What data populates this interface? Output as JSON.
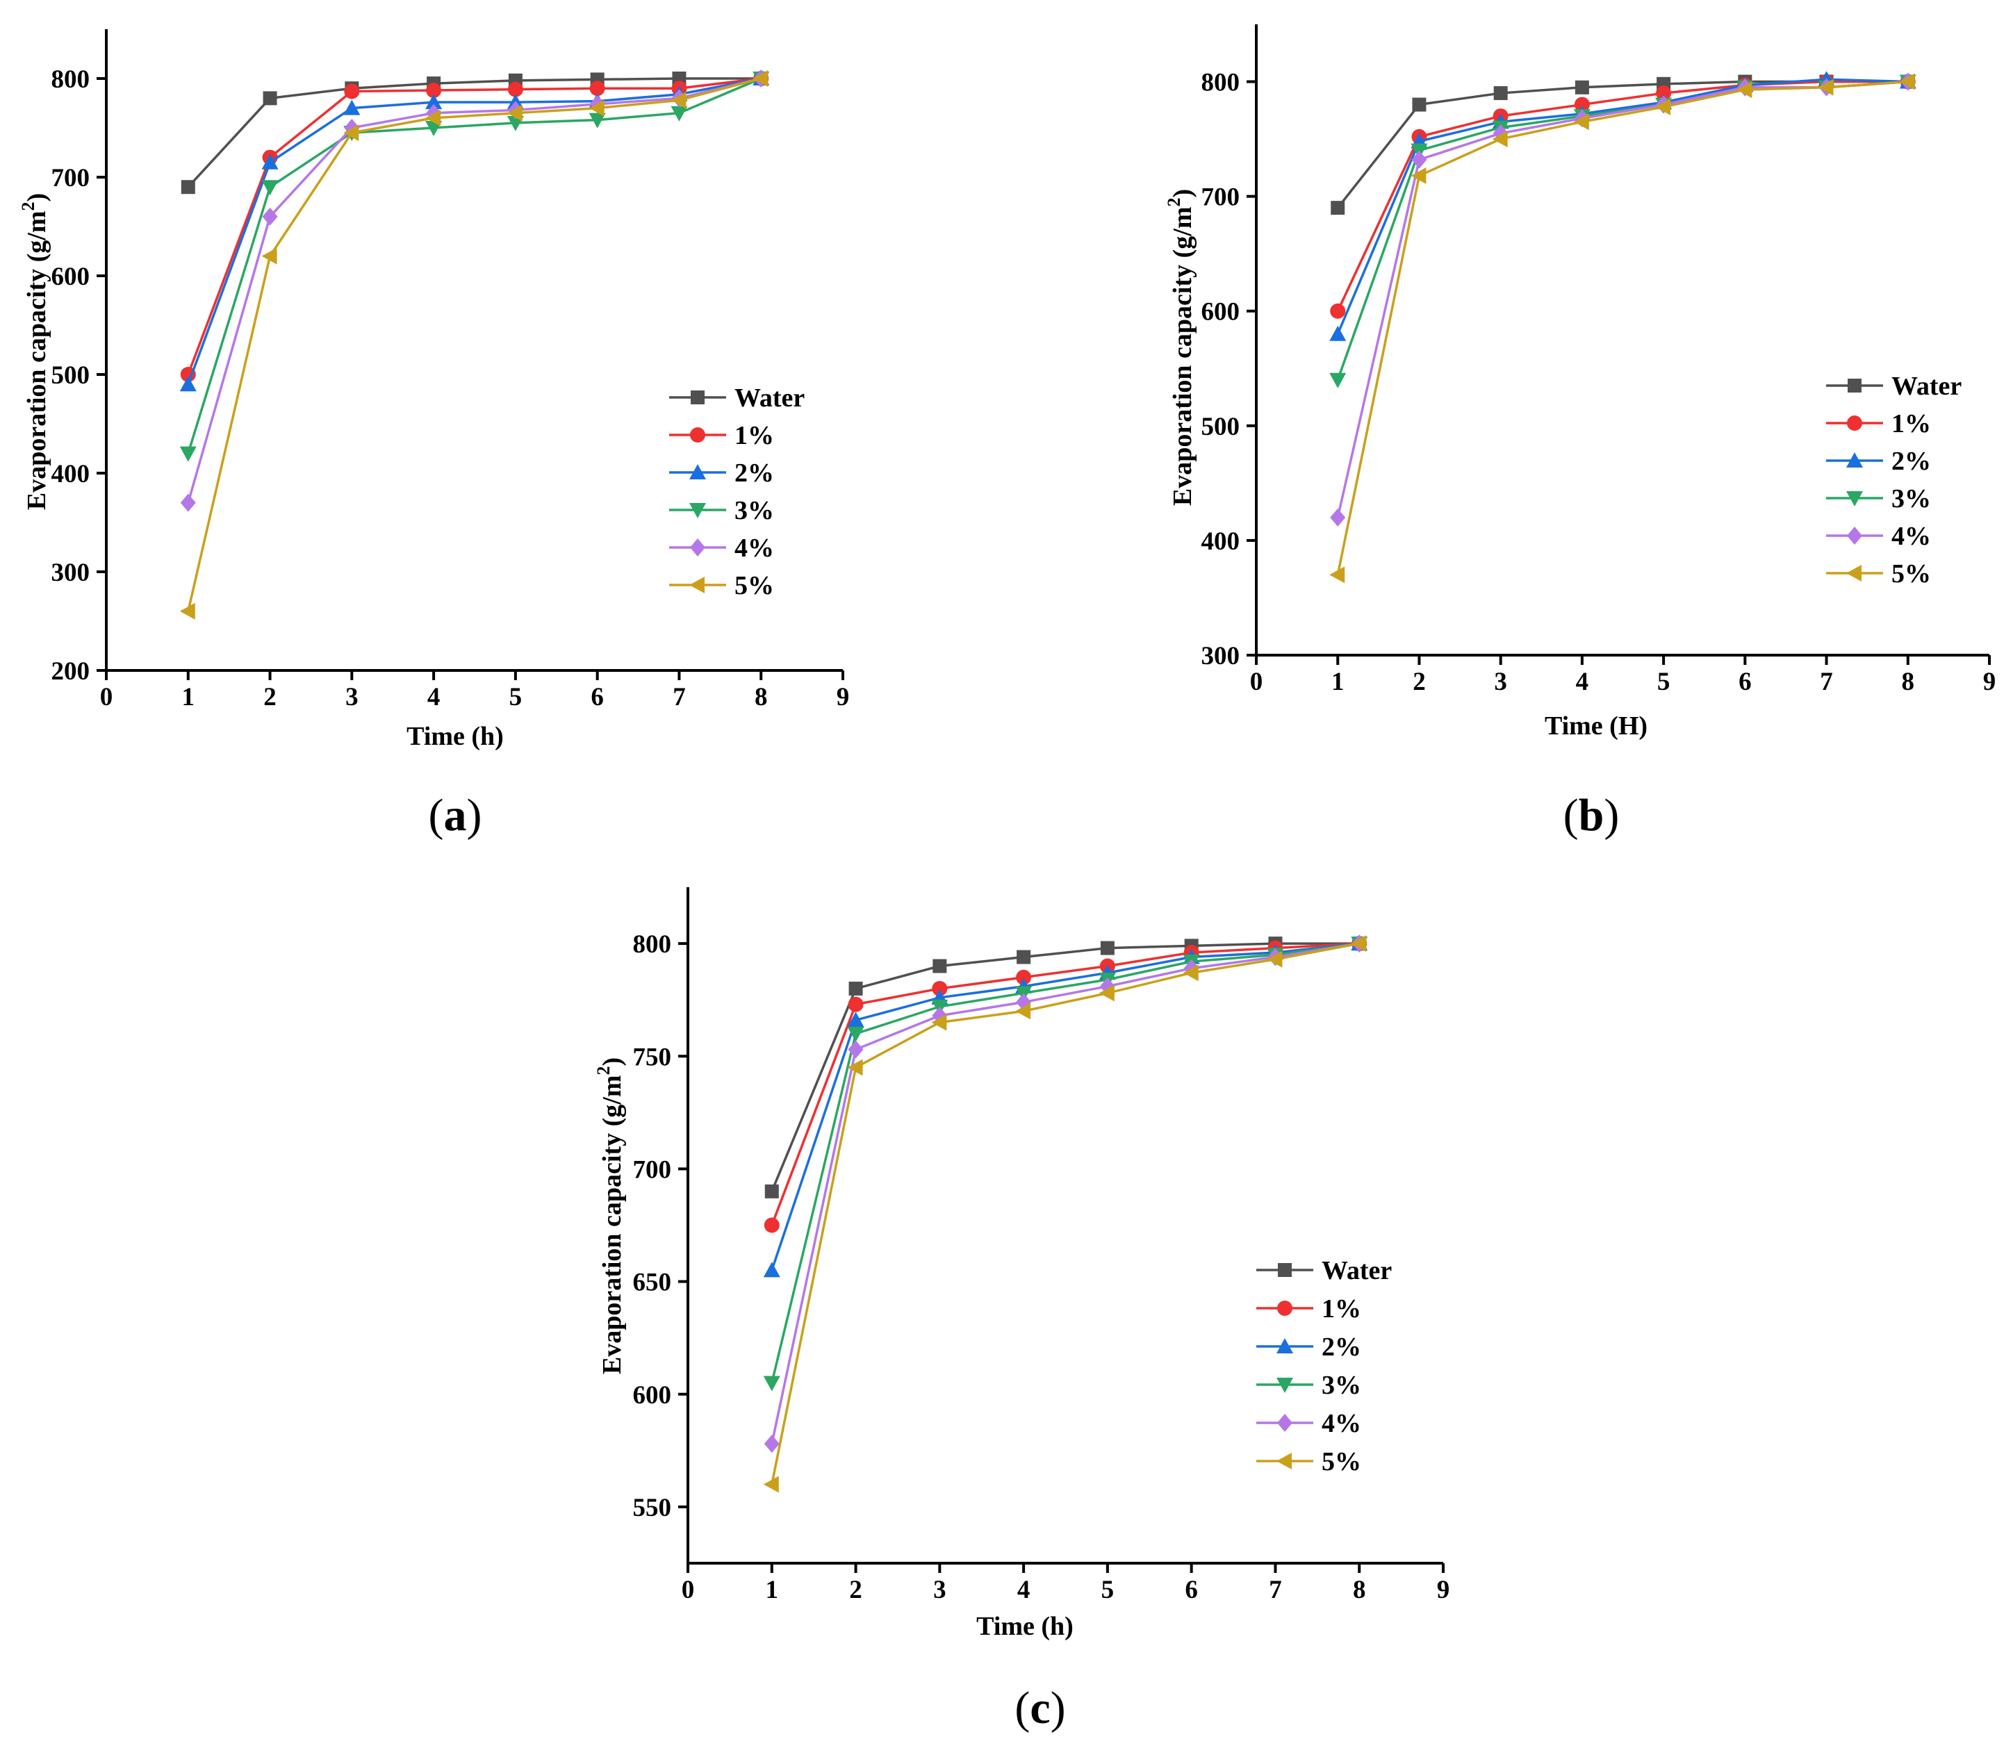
{
  "chart_data": [
    {
      "type": "line",
      "panel": "a",
      "xlabel": "Time (h)",
      "ylabel_prefix": "Evaporation capacity (g/m",
      "ylabel_sup": "2",
      "ylabel_suffix": ")",
      "xlim": [
        0,
        9
      ],
      "ylim": [
        200,
        850
      ],
      "xticks": [
        0,
        1,
        2,
        3,
        4,
        5,
        6,
        7,
        8,
        9
      ],
      "yticks": [
        200,
        300,
        400,
        500,
        600,
        700,
        800
      ],
      "legend_position": "right-middle",
      "x": [
        1,
        2,
        3,
        4,
        5,
        6,
        7,
        8
      ],
      "series": [
        {
          "name": "Water",
          "color": "#505050",
          "marker": "square",
          "values": [
            690,
            780,
            790,
            795,
            798,
            799,
            800,
            800
          ]
        },
        {
          "name": "1%",
          "color": "#ee3030",
          "marker": "circle",
          "values": [
            500,
            720,
            787,
            788,
            789,
            790,
            790,
            800
          ]
        },
        {
          "name": "2%",
          "color": "#1a6fdf",
          "marker": "triangle-up",
          "values": [
            490,
            715,
            770,
            776,
            776,
            777,
            784,
            800
          ]
        },
        {
          "name": "3%",
          "color": "#2aa763",
          "marker": "triangle-down",
          "values": [
            420,
            690,
            745,
            750,
            755,
            758,
            765,
            800
          ]
        },
        {
          "name": "4%",
          "color": "#b577e8",
          "marker": "diamond",
          "values": [
            370,
            660,
            750,
            765,
            768,
            774,
            780,
            800
          ]
        },
        {
          "name": "5%",
          "color": "#caa01b",
          "marker": "triangle-left",
          "values": [
            260,
            620,
            745,
            760,
            765,
            770,
            778,
            800
          ]
        }
      ]
    },
    {
      "type": "line",
      "panel": "b",
      "xlabel": "Time (H)",
      "ylabel_prefix": "Evaporation capacity (g/m",
      "ylabel_sup": "2",
      "ylabel_suffix": ")",
      "xlim": [
        0,
        9
      ],
      "ylim": [
        300,
        850
      ],
      "xticks": [
        0,
        1,
        2,
        3,
        4,
        5,
        6,
        7,
        8,
        9
      ],
      "yticks": [
        300,
        400,
        500,
        600,
        700,
        800
      ],
      "legend_position": "right-middle",
      "x": [
        1,
        2,
        3,
        4,
        5,
        6,
        7,
        8
      ],
      "series": [
        {
          "name": "Water",
          "color": "#505050",
          "marker": "square",
          "values": [
            690,
            780,
            790,
            795,
            798,
            800,
            800,
            800
          ]
        },
        {
          "name": "1%",
          "color": "#ee3030",
          "marker": "circle",
          "values": [
            600,
            752,
            770,
            780,
            790,
            797,
            800,
            800
          ]
        },
        {
          "name": "2%",
          "color": "#1a6fdf",
          "marker": "triangle-up",
          "values": [
            580,
            748,
            765,
            772,
            782,
            797,
            802,
            800
          ]
        },
        {
          "name": "3%",
          "color": "#2aa763",
          "marker": "triangle-down",
          "values": [
            540,
            740,
            760,
            770,
            780,
            795,
            795,
            800
          ]
        },
        {
          "name": "4%",
          "color": "#b577e8",
          "marker": "diamond",
          "values": [
            420,
            732,
            755,
            768,
            780,
            795,
            795,
            800
          ]
        },
        {
          "name": "5%",
          "color": "#caa01b",
          "marker": "triangle-left",
          "values": [
            370,
            718,
            750,
            765,
            778,
            793,
            795,
            800
          ]
        }
      ]
    },
    {
      "type": "line",
      "panel": "c",
      "xlabel": "Time (h)",
      "ylabel_prefix": "Evaporation capacity (g/m",
      "ylabel_sup": "2",
      "ylabel_suffix": ")",
      "xlim": [
        0,
        9
      ],
      "ylim": [
        525,
        825
      ],
      "xticks": [
        0,
        1,
        2,
        3,
        4,
        5,
        6,
        7,
        8,
        9
      ],
      "yticks": [
        550,
        600,
        650,
        700,
        750,
        800
      ],
      "legend_position": "right-middle",
      "x": [
        1,
        2,
        3,
        4,
        5,
        6,
        7,
        8
      ],
      "series": [
        {
          "name": "Water",
          "color": "#505050",
          "marker": "square",
          "values": [
            690,
            780,
            790,
            794,
            798,
            799,
            800,
            800
          ]
        },
        {
          "name": "1%",
          "color": "#ee3030",
          "marker": "circle",
          "values": [
            675,
            773,
            780,
            785,
            790,
            796,
            798,
            800
          ]
        },
        {
          "name": "2%",
          "color": "#1a6fdf",
          "marker": "triangle-up",
          "values": [
            655,
            766,
            776,
            781,
            787,
            794,
            796,
            800
          ]
        },
        {
          "name": "3%",
          "color": "#2aa763",
          "marker": "triangle-down",
          "values": [
            605,
            760,
            772,
            778,
            784,
            792,
            795,
            800
          ]
        },
        {
          "name": "4%",
          "color": "#b577e8",
          "marker": "diamond",
          "values": [
            578,
            753,
            768,
            774,
            781,
            789,
            794,
            800
          ]
        },
        {
          "name": "5%",
          "color": "#caa01b",
          "marker": "triangle-left",
          "values": [
            560,
            745,
            765,
            770,
            778,
            787,
            793,
            800
          ]
        }
      ]
    }
  ]
}
